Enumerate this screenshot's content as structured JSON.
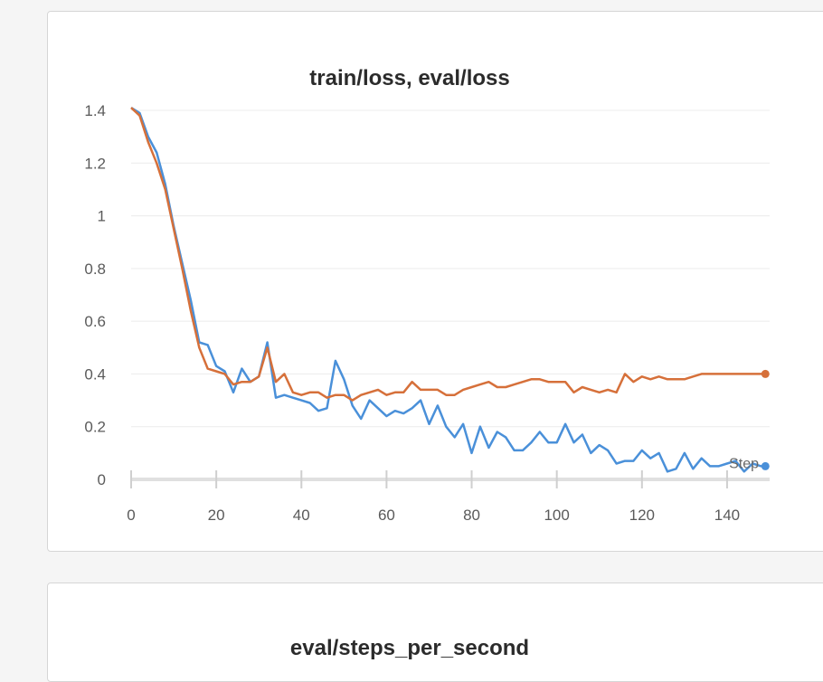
{
  "panels": [
    {
      "title": "train/loss, eval/loss"
    },
    {
      "title": "eval/steps_per_second"
    }
  ],
  "chart_data": {
    "type": "line",
    "title": "train/loss, eval/loss",
    "xlabel": "Step",
    "ylabel": "",
    "xlim": [
      0,
      150
    ],
    "ylim": [
      0,
      1.4
    ],
    "x_ticks": [
      0,
      20,
      40,
      60,
      80,
      100,
      120,
      140
    ],
    "y_ticks": [
      0,
      0.2,
      0.4,
      0.6,
      0.8,
      1,
      1.2,
      1.4
    ],
    "y_tick_labels": [
      "0",
      "0.2",
      "0.4",
      "0.6",
      "0.8",
      "1",
      "1.2",
      "1.4"
    ],
    "grid": true,
    "legend": "none",
    "series": [
      {
        "color": "#4a90d9",
        "x": [
          0,
          2,
          4,
          6,
          8,
          10,
          12,
          14,
          16,
          18,
          20,
          22,
          24,
          26,
          28,
          30,
          32,
          34,
          36,
          38,
          40,
          42,
          44,
          46,
          48,
          50,
          52,
          54,
          56,
          58,
          60,
          62,
          64,
          66,
          68,
          70,
          72,
          74,
          76,
          78,
          80,
          82,
          84,
          86,
          88,
          90,
          92,
          94,
          96,
          98,
          100,
          102,
          104,
          106,
          108,
          110,
          112,
          114,
          116,
          118,
          120,
          122,
          124,
          126,
          128,
          130,
          132,
          134,
          136,
          138,
          140,
          142,
          144,
          146,
          148,
          149
        ],
        "y": [
          1.41,
          1.39,
          1.3,
          1.24,
          1.12,
          0.96,
          0.82,
          0.68,
          0.52,
          0.51,
          0.43,
          0.41,
          0.33,
          0.42,
          0.37,
          0.39,
          0.52,
          0.31,
          0.32,
          0.31,
          0.3,
          0.29,
          0.26,
          0.27,
          0.45,
          0.38,
          0.28,
          0.23,
          0.3,
          0.27,
          0.24,
          0.26,
          0.25,
          0.27,
          0.3,
          0.21,
          0.28,
          0.2,
          0.16,
          0.21,
          0.1,
          0.2,
          0.12,
          0.18,
          0.16,
          0.11,
          0.11,
          0.14,
          0.18,
          0.14,
          0.14,
          0.21,
          0.14,
          0.17,
          0.1,
          0.13,
          0.11,
          0.06,
          0.07,
          0.07,
          0.11,
          0.08,
          0.1,
          0.03,
          0.04,
          0.1,
          0.04,
          0.08,
          0.05,
          0.05,
          0.06,
          0.07,
          0.03,
          0.06,
          0.05,
          0.05
        ]
      },
      {
        "color": "#d6703a",
        "x": [
          0,
          2,
          4,
          6,
          8,
          10,
          12,
          14,
          16,
          18,
          20,
          22,
          24,
          26,
          28,
          30,
          32,
          34,
          36,
          38,
          40,
          42,
          44,
          46,
          48,
          50,
          52,
          54,
          56,
          58,
          60,
          62,
          64,
          66,
          68,
          70,
          72,
          74,
          76,
          78,
          80,
          82,
          84,
          86,
          88,
          90,
          92,
          94,
          96,
          98,
          100,
          102,
          104,
          106,
          108,
          110,
          112,
          114,
          116,
          118,
          120,
          122,
          124,
          126,
          128,
          130,
          132,
          134,
          136,
          138,
          140,
          142,
          144,
          146,
          148,
          149
        ],
        "y": [
          1.41,
          1.38,
          1.28,
          1.2,
          1.1,
          0.95,
          0.8,
          0.64,
          0.5,
          0.42,
          0.41,
          0.4,
          0.36,
          0.37,
          0.37,
          0.39,
          0.5,
          0.37,
          0.4,
          0.33,
          0.32,
          0.33,
          0.33,
          0.31,
          0.32,
          0.32,
          0.3,
          0.32,
          0.33,
          0.34,
          0.32,
          0.33,
          0.33,
          0.37,
          0.34,
          0.34,
          0.34,
          0.32,
          0.32,
          0.34,
          0.35,
          0.36,
          0.37,
          0.35,
          0.35,
          0.36,
          0.37,
          0.38,
          0.38,
          0.37,
          0.37,
          0.37,
          0.33,
          0.35,
          0.34,
          0.33,
          0.34,
          0.33,
          0.4,
          0.37,
          0.39,
          0.38,
          0.39,
          0.38,
          0.38,
          0.38,
          0.39,
          0.4,
          0.4,
          0.4,
          0.4,
          0.4,
          0.4,
          0.4,
          0.4,
          0.4
        ]
      }
    ]
  }
}
